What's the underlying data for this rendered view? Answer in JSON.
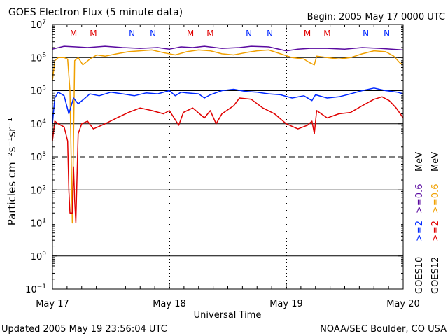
{
  "header": {
    "title": "GOES Electron Flux (5 minute data)",
    "begin": "Begin: 2005 May 17 0000 UTC"
  },
  "footer": {
    "updated": "Updated 2005 May 19 23:56:04 UTC",
    "source": "NOAA/SEC Boulder, CO USA"
  },
  "colors": {
    "g10_low": "#5a0aa0",
    "g12_low": "#f0a000",
    "g10_high": "#0028ff",
    "g12_high": "#e00000",
    "marker_m": "#e00000",
    "marker_n": "#0028ff"
  },
  "chart_data": {
    "type": "line",
    "yscale": "log",
    "ylim": [
      0.1,
      10000000
    ],
    "xlim_days": [
      0,
      3
    ],
    "ylabel": "Particles cm⁻²s⁻¹sr⁻¹",
    "xlabel": "Universal Time",
    "ytick_exponents": [
      -1,
      0,
      1,
      2,
      3,
      4,
      5,
      6,
      7
    ],
    "xtick_labels": [
      "May 17",
      "May 18",
      "May 19",
      "May 20"
    ],
    "legend": {
      "g10_low": "GOES10",
      "g10_high": "GOES10",
      "g12_low": "GOES12",
      "g12_high": "GOES12",
      "g10_low_ch": ">=0.6",
      "g10_high_ch": ">=2",
      "g12_low_ch": ">=0.6",
      "g12_high_ch": ">=2",
      "mev": "MeV"
    },
    "markers": [
      {
        "label": "M",
        "x": 0.18
      },
      {
        "label": "M",
        "x": 0.35
      },
      {
        "label": "N",
        "x": 0.68
      },
      {
        "label": "N",
        "x": 0.86
      },
      {
        "label": "M",
        "x": 1.18
      },
      {
        "label": "M",
        "x": 1.35
      },
      {
        "label": "N",
        "x": 1.68
      },
      {
        "label": "N",
        "x": 1.86
      },
      {
        "label": "M",
        "x": 2.18
      },
      {
        "label": "M",
        "x": 2.35
      },
      {
        "label": "N",
        "x": 2.68
      },
      {
        "label": "N",
        "x": 2.86
      }
    ],
    "series": [
      {
        "key": "g10_low",
        "values": [
          [
            0.0,
            1800000
          ],
          [
            0.1,
            2200000
          ],
          [
            0.2,
            2100000
          ],
          [
            0.3,
            2000000
          ],
          [
            0.45,
            2200000
          ],
          [
            0.6,
            2000000
          ],
          [
            0.75,
            1900000
          ],
          [
            0.9,
            2000000
          ],
          [
            1.0,
            1800000
          ],
          [
            1.1,
            2100000
          ],
          [
            1.2,
            2000000
          ],
          [
            1.3,
            2200000
          ],
          [
            1.45,
            1900000
          ],
          [
            1.6,
            2000000
          ],
          [
            1.7,
            2200000
          ],
          [
            1.85,
            2100000
          ],
          [
            2.0,
            1600000
          ],
          [
            2.1,
            1800000
          ],
          [
            2.2,
            1900000
          ],
          [
            2.35,
            1900000
          ],
          [
            2.5,
            1800000
          ],
          [
            2.65,
            2000000
          ],
          [
            2.8,
            1900000
          ],
          [
            2.9,
            1800000
          ],
          [
            3.0,
            1700000
          ]
        ]
      },
      {
        "key": "g12_low",
        "values": [
          [
            0.0,
            200000
          ],
          [
            0.02,
            800000
          ],
          [
            0.05,
            1000000
          ],
          [
            0.1,
            1000000
          ],
          [
            0.13,
            900000
          ],
          [
            0.15,
            100000
          ],
          [
            0.16,
            1000
          ],
          [
            0.17,
            10
          ],
          [
            0.19,
            800000
          ],
          [
            0.22,
            1000000
          ],
          [
            0.26,
            600000
          ],
          [
            0.32,
            900000
          ],
          [
            0.38,
            1200000
          ],
          [
            0.45,
            1100000
          ],
          [
            0.55,
            1300000
          ],
          [
            0.65,
            1500000
          ],
          [
            0.75,
            1600000
          ],
          [
            0.85,
            1700000
          ],
          [
            0.95,
            1400000
          ],
          [
            1.05,
            1200000
          ],
          [
            1.15,
            1500000
          ],
          [
            1.25,
            1700000
          ],
          [
            1.35,
            1600000
          ],
          [
            1.45,
            1300000
          ],
          [
            1.55,
            1200000
          ],
          [
            1.65,
            1400000
          ],
          [
            1.75,
            1600000
          ],
          [
            1.85,
            1700000
          ],
          [
            1.95,
            1300000
          ],
          [
            2.05,
            1000000
          ],
          [
            2.15,
            900000
          ],
          [
            2.2,
            700000
          ],
          [
            2.24,
            600000
          ],
          [
            2.26,
            1100000
          ],
          [
            2.35,
            1000000
          ],
          [
            2.45,
            900000
          ],
          [
            2.55,
            1000000
          ],
          [
            2.65,
            1300000
          ],
          [
            2.75,
            1600000
          ],
          [
            2.85,
            1500000
          ],
          [
            2.92,
            1100000
          ],
          [
            2.97,
            700000
          ],
          [
            3.0,
            600000
          ]
        ]
      },
      {
        "key": "g10_high",
        "values": [
          [
            0.0,
            10000
          ],
          [
            0.02,
            60000
          ],
          [
            0.05,
            90000
          ],
          [
            0.1,
            70000
          ],
          [
            0.14,
            20000
          ],
          [
            0.18,
            60000
          ],
          [
            0.22,
            40000
          ],
          [
            0.28,
            60000
          ],
          [
            0.32,
            80000
          ],
          [
            0.4,
            70000
          ],
          [
            0.5,
            90000
          ],
          [
            0.6,
            80000
          ],
          [
            0.7,
            70000
          ],
          [
            0.8,
            85000
          ],
          [
            0.9,
            80000
          ],
          [
            1.0,
            100000
          ],
          [
            1.05,
            70000
          ],
          [
            1.1,
            90000
          ],
          [
            1.15,
            85000
          ],
          [
            1.25,
            80000
          ],
          [
            1.3,
            60000
          ],
          [
            1.35,
            75000
          ],
          [
            1.45,
            100000
          ],
          [
            1.55,
            110000
          ],
          [
            1.65,
            95000
          ],
          [
            1.75,
            90000
          ],
          [
            1.85,
            80000
          ],
          [
            1.95,
            75000
          ],
          [
            2.05,
            60000
          ],
          [
            2.15,
            70000
          ],
          [
            2.22,
            50000
          ],
          [
            2.25,
            75000
          ],
          [
            2.35,
            60000
          ],
          [
            2.45,
            65000
          ],
          [
            2.55,
            80000
          ],
          [
            2.65,
            100000
          ],
          [
            2.75,
            120000
          ],
          [
            2.85,
            100000
          ],
          [
            2.95,
            90000
          ],
          [
            3.0,
            80000
          ]
        ]
      },
      {
        "key": "g12_high",
        "values": [
          [
            0.0,
            3000
          ],
          [
            0.02,
            12000
          ],
          [
            0.05,
            10000
          ],
          [
            0.1,
            8000
          ],
          [
            0.13,
            3000
          ],
          [
            0.14,
            100
          ],
          [
            0.15,
            20
          ],
          [
            0.17,
            20
          ],
          [
            0.18,
            500
          ],
          [
            0.19,
            50
          ],
          [
            0.2,
            10
          ],
          [
            0.22,
            5000
          ],
          [
            0.25,
            10000
          ],
          [
            0.3,
            12000
          ],
          [
            0.35,
            7000
          ],
          [
            0.45,
            10000
          ],
          [
            0.55,
            15000
          ],
          [
            0.65,
            22000
          ],
          [
            0.75,
            30000
          ],
          [
            0.85,
            25000
          ],
          [
            0.95,
            20000
          ],
          [
            1.0,
            25000
          ],
          [
            1.08,
            9000
          ],
          [
            1.12,
            22000
          ],
          [
            1.2,
            30000
          ],
          [
            1.3,
            15000
          ],
          [
            1.35,
            25000
          ],
          [
            1.4,
            10000
          ],
          [
            1.45,
            20000
          ],
          [
            1.55,
            35000
          ],
          [
            1.6,
            60000
          ],
          [
            1.7,
            55000
          ],
          [
            1.8,
            30000
          ],
          [
            1.9,
            20000
          ],
          [
            2.0,
            10000
          ],
          [
            2.1,
            7000
          ],
          [
            2.18,
            9000
          ],
          [
            2.22,
            12000
          ],
          [
            2.24,
            5000
          ],
          [
            2.26,
            25000
          ],
          [
            2.35,
            15000
          ],
          [
            2.45,
            20000
          ],
          [
            2.55,
            22000
          ],
          [
            2.65,
            35000
          ],
          [
            2.75,
            55000
          ],
          [
            2.82,
            65000
          ],
          [
            2.88,
            50000
          ],
          [
            2.94,
            30000
          ],
          [
            3.0,
            15000
          ]
        ]
      }
    ]
  }
}
